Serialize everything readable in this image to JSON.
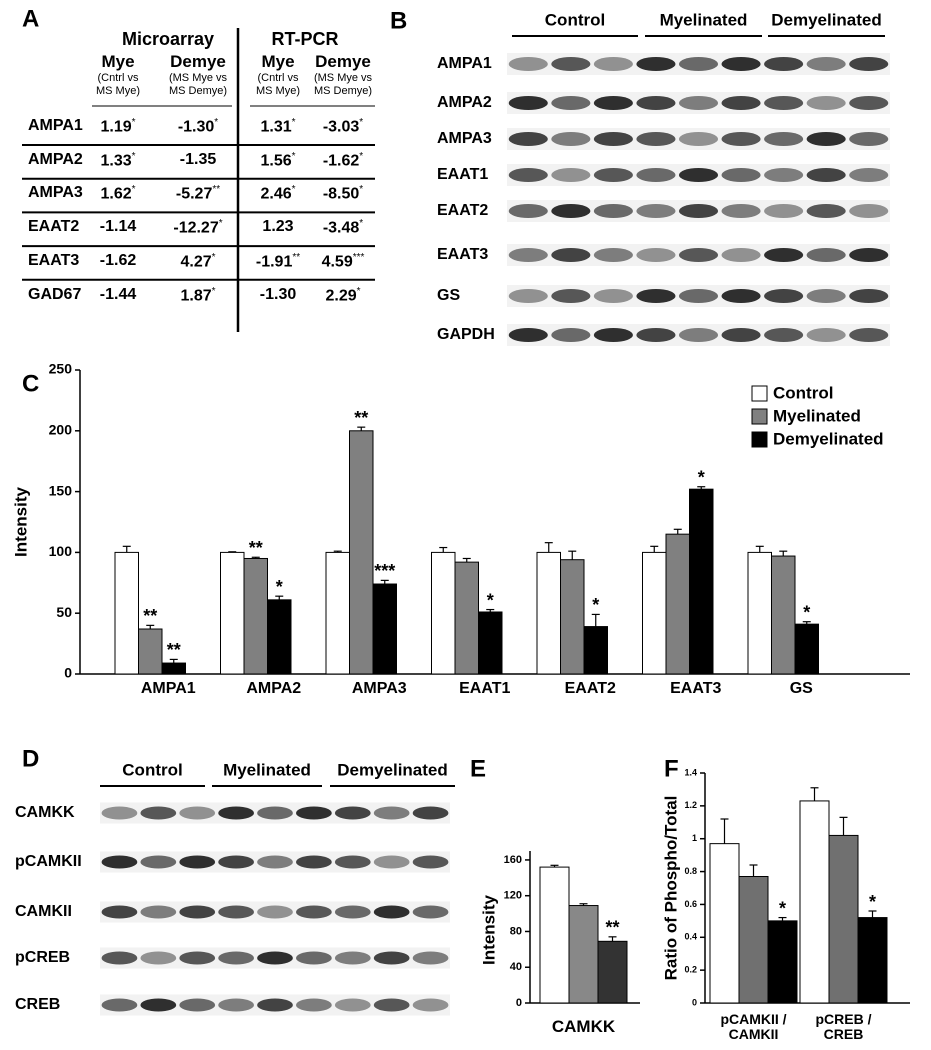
{
  "panel_a": {
    "label": "A",
    "groups": [
      {
        "title": "Microarray",
        "columns": [
          {
            "title": "Mye",
            "note": "(Cntrl vs\nMS Mye)"
          },
          {
            "title": "Demye",
            "note": "(MS Mye vs\nMS Demye)"
          }
        ]
      },
      {
        "title": "RT-PCR",
        "columns": [
          {
            "title": "Mye",
            "note": "(Cntrl vs\nMS Mye)"
          },
          {
            "title": "Demye",
            "note": "(MS Mye vs\nMS Demye)"
          }
        ]
      }
    ],
    "rows": [
      {
        "name": "AMPA1",
        "cells": [
          {
            "value": "1.19",
            "sig": "*"
          },
          {
            "value": "-1.30",
            "sig": "*"
          },
          {
            "value": "1.31",
            "sig": "*"
          },
          {
            "value": "-3.03",
            "sig": "*"
          }
        ]
      },
      {
        "name": "AMPA2",
        "cells": [
          {
            "value": "1.33",
            "sig": "*"
          },
          {
            "value": "-1.35"
          },
          {
            "value": "1.56",
            "sig": "*"
          },
          {
            "value": "-1.62",
            "sig": "*"
          }
        ]
      },
      {
        "name": "AMPA3",
        "cells": [
          {
            "value": "1.62",
            "sig": "*"
          },
          {
            "value": "-5.27",
            "sig": "**"
          },
          {
            "value": "2.46",
            "sig": "*"
          },
          {
            "value": "-8.50",
            "sig": "*"
          }
        ]
      },
      {
        "name": "EAAT2",
        "cells": [
          {
            "value": "-1.14"
          },
          {
            "value": "-12.27",
            "sig": "*"
          },
          {
            "value": "1.23"
          },
          {
            "value": "-3.48",
            "sig": "*"
          }
        ]
      },
      {
        "name": "EAAT3",
        "cells": [
          {
            "value": "-1.62"
          },
          {
            "value": "4.27",
            "sig": "*"
          },
          {
            "value": "-1.91",
            "sig": "**"
          },
          {
            "value": "4.59",
            "sig": "***"
          }
        ]
      },
      {
        "name": "GAD67",
        "cells": [
          {
            "value": "-1.44"
          },
          {
            "value": "1.87",
            "sig": "*"
          },
          {
            "value": "-1.30"
          },
          {
            "value": "2.29",
            "sig": "*"
          }
        ]
      }
    ]
  },
  "panel_b": {
    "label": "B",
    "groups": [
      "Control",
      "Myelinated",
      "Demyelinated"
    ],
    "rows": [
      "AMPA1",
      "AMPA2",
      "AMPA3",
      "EAAT1",
      "EAAT2",
      "EAAT3",
      "GS",
      "GAPDH"
    ]
  },
  "panel_d": {
    "label": "D",
    "groups": [
      "Control",
      "Myelinated",
      "Demyelinated"
    ],
    "rows": [
      "CAMKK",
      "pCAMKII",
      "CAMKII",
      "pCREB",
      "CREB"
    ]
  },
  "chart_data": [
    {
      "type": "bar",
      "label": "C",
      "ylabel": "Intensity",
      "categories": [
        "AMPA1",
        "AMPA2",
        "AMPA3",
        "EAAT1",
        "EAAT2",
        "EAAT3",
        "GS"
      ],
      "series": [
        {
          "name": "Control",
          "color": "#ffffff",
          "values": [
            100,
            100,
            100,
            100,
            100,
            100,
            100
          ],
          "errors": [
            5,
            0.5,
            1,
            4,
            8,
            5,
            5
          ],
          "annotations": [
            null,
            null,
            null,
            null,
            null,
            null,
            null
          ]
        },
        {
          "name": "Myelinated",
          "color": "#808080",
          "values": [
            37,
            95,
            200,
            92,
            94,
            115,
            97
          ],
          "errors": [
            3,
            1,
            3,
            3,
            7,
            4,
            4
          ],
          "annotations": [
            "**",
            "**",
            "**",
            null,
            null,
            null,
            null
          ]
        },
        {
          "name": "Demyelinated",
          "color": "#000000",
          "values": [
            9,
            61,
            74,
            51,
            39,
            152,
            41
          ],
          "errors": [
            3,
            3,
            3,
            2,
            10,
            2,
            2
          ],
          "annotations": [
            "**",
            "*",
            "***",
            "*",
            "*",
            "*",
            "*"
          ]
        }
      ],
      "ylim": [
        0,
        250
      ],
      "yticks": [
        0,
        50,
        100,
        150,
        200,
        250
      ],
      "legend": "upper right"
    },
    {
      "type": "bar",
      "label": "E",
      "ylabel": "Intensity",
      "categories": [
        "CAMKK"
      ],
      "series": [
        {
          "color": "#ffffff",
          "values": [
            152
          ],
          "errors": [
            2
          ],
          "annotations": [
            null
          ]
        },
        {
          "color": "#888888",
          "values": [
            109
          ],
          "errors": [
            2
          ],
          "annotations": [
            null
          ]
        },
        {
          "color": "#333333",
          "values": [
            69
          ],
          "errors": [
            5
          ],
          "annotations": [
            "**"
          ]
        }
      ],
      "ylim": [
        0,
        170
      ],
      "yticks": [
        0,
        40,
        80,
        120,
        160
      ]
    },
    {
      "type": "bar",
      "label": "F",
      "ylabel": "Ratio of Phospho/Total",
      "categories": [
        "pCAMKII /\nCAMKII",
        "pCREB /\nCREB"
      ],
      "series": [
        {
          "color": "#ffffff",
          "values": [
            0.97,
            1.23
          ],
          "errors": [
            0.15,
            0.08
          ],
          "annotations": [
            null,
            null
          ]
        },
        {
          "color": "#707070",
          "values": [
            0.77,
            1.02
          ],
          "errors": [
            0.07,
            0.11
          ],
          "annotations": [
            null,
            null
          ]
        },
        {
          "color": "#000000",
          "values": [
            0.5,
            0.52
          ],
          "errors": [
            0.02,
            0.04
          ],
          "annotations": [
            "*",
            "*"
          ]
        }
      ],
      "ylim": [
        0,
        1.4
      ],
      "yticks": [
        0,
        0.2,
        0.4,
        0.6,
        0.8,
        1,
        1.2,
        1.4
      ]
    }
  ]
}
